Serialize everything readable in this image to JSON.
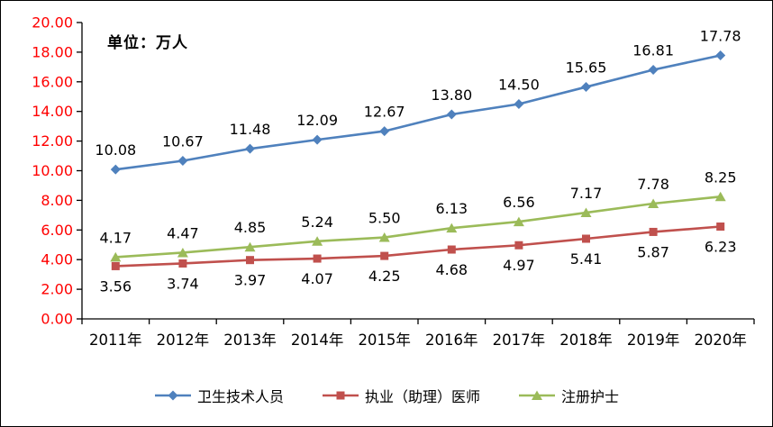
{
  "chart_data": {
    "type": "line",
    "title": "",
    "xlabel": "",
    "ylabel": "",
    "unit_annotation": "单位：万人",
    "categories": [
      "2011年",
      "2012年",
      "2013年",
      "2014年",
      "2015年",
      "2016年",
      "2017年",
      "2018年",
      "2019年",
      "2020年"
    ],
    "series": [
      {
        "name": "卫生技术人员",
        "color": "#4F81BD",
        "marker": "diamond",
        "label_position": "above",
        "values": [
          10.08,
          10.67,
          11.48,
          12.09,
          12.67,
          13.8,
          14.5,
          15.65,
          16.81,
          17.78
        ]
      },
      {
        "name": "执业（助理）医师",
        "color": "#C0504D",
        "marker": "square",
        "label_position": "below",
        "values": [
          3.56,
          3.74,
          3.97,
          4.07,
          4.25,
          4.68,
          4.97,
          5.41,
          5.87,
          6.23
        ]
      },
      {
        "name": "注册护士",
        "color": "#9BBB59",
        "marker": "triangle",
        "label_position": "above",
        "values": [
          4.17,
          4.47,
          4.85,
          5.24,
          5.5,
          6.13,
          6.56,
          7.17,
          7.78,
          8.25
        ]
      }
    ],
    "ylim": [
      0,
      20
    ],
    "ytick_interval": 2,
    "y_tick_labels": [
      "0.00",
      "2.00",
      "4.00",
      "6.00",
      "8.00",
      "10.00",
      "12.00",
      "14.00",
      "16.00",
      "18.00",
      "20.00"
    ],
    "y_tick_label_color": "#FF0000",
    "x_tick_label_color": "#000000",
    "data_label_color": "#000000",
    "axis_color": "#000000",
    "grid": false,
    "legend_position": "bottom"
  }
}
